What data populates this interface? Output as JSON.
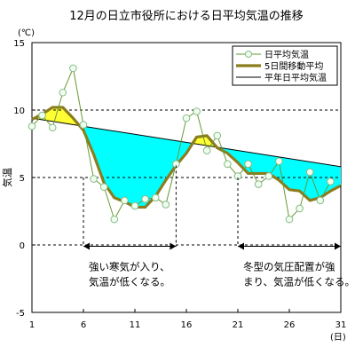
{
  "chart_data": {
    "type": "line",
    "title": "12月の日立市役所における日平均気温の推移",
    "ylabel": "気温",
    "yunit": "(℃)",
    "xunit": "(日)",
    "xlim": [
      1,
      31
    ],
    "ylim": [
      -5,
      15
    ],
    "xticks": [
      1,
      6,
      11,
      16,
      21,
      26,
      31
    ],
    "yticks": [
      -5,
      0,
      5,
      10,
      15
    ],
    "grid": "dashed horizontal at 0, 5, 10",
    "legend_position": "top-right",
    "series": [
      {
        "name": "日平均気温",
        "x": [
          1,
          2,
          3,
          4,
          5,
          6,
          7,
          8,
          9,
          10,
          11,
          12,
          13,
          14,
          15,
          16,
          17,
          18,
          19,
          20,
          21,
          22,
          23,
          24,
          25,
          26,
          27,
          28,
          29,
          30,
          31
        ],
        "values": [
          8.8,
          9.6,
          8.7,
          11.3,
          13.1,
          8.9,
          4.9,
          4.3,
          1.9,
          3.3,
          2.9,
          3.4,
          3.5,
          3.0,
          6.0,
          9.4,
          9.9,
          7.0,
          8.1,
          6.0,
          5.1,
          6.0,
          4.5,
          5.1,
          6.2,
          1.9,
          2.7,
          5.4,
          3.3,
          4.7,
          null
        ],
        "color": "#669933",
        "marker": "circle",
        "marker_fill": "#eeffee"
      },
      {
        "name": "5日間移動平均",
        "x": [
          1,
          2,
          3,
          4,
          5,
          6,
          7,
          8,
          9,
          10,
          11,
          12,
          13,
          14,
          15,
          16,
          17,
          18,
          19,
          20,
          21,
          22,
          23,
          24,
          25,
          26,
          27,
          28,
          29,
          30,
          31
        ],
        "values": [
          9.3,
          9.7,
          10.2,
          10.2,
          9.4,
          8.5,
          6.7,
          4.6,
          3.5,
          3.2,
          2.8,
          2.8,
          3.6,
          4.8,
          5.9,
          6.8,
          8.0,
          8.1,
          7.2,
          6.8,
          6.1,
          5.3,
          5.3,
          5.3,
          4.8,
          4.1,
          4.0,
          3.3,
          3.5,
          4.0,
          4.4
        ],
        "color": "#8b7d1e"
      },
      {
        "name": "平年日平均気温",
        "x": [
          1,
          31
        ],
        "values": [
          9.4,
          5.8
        ],
        "color": "#000000"
      }
    ],
    "fill_above_normal": "#ffff33",
    "fill_below_normal": "#00ffff",
    "annotations": [
      {
        "text": "強い寒気が入り、\n気温が低くなる。",
        "x_range": [
          6,
          15
        ]
      },
      {
        "text": "冬型の気圧配置が強\nまり、気温が低くなる。",
        "x_range": [
          21,
          31
        ]
      }
    ]
  }
}
